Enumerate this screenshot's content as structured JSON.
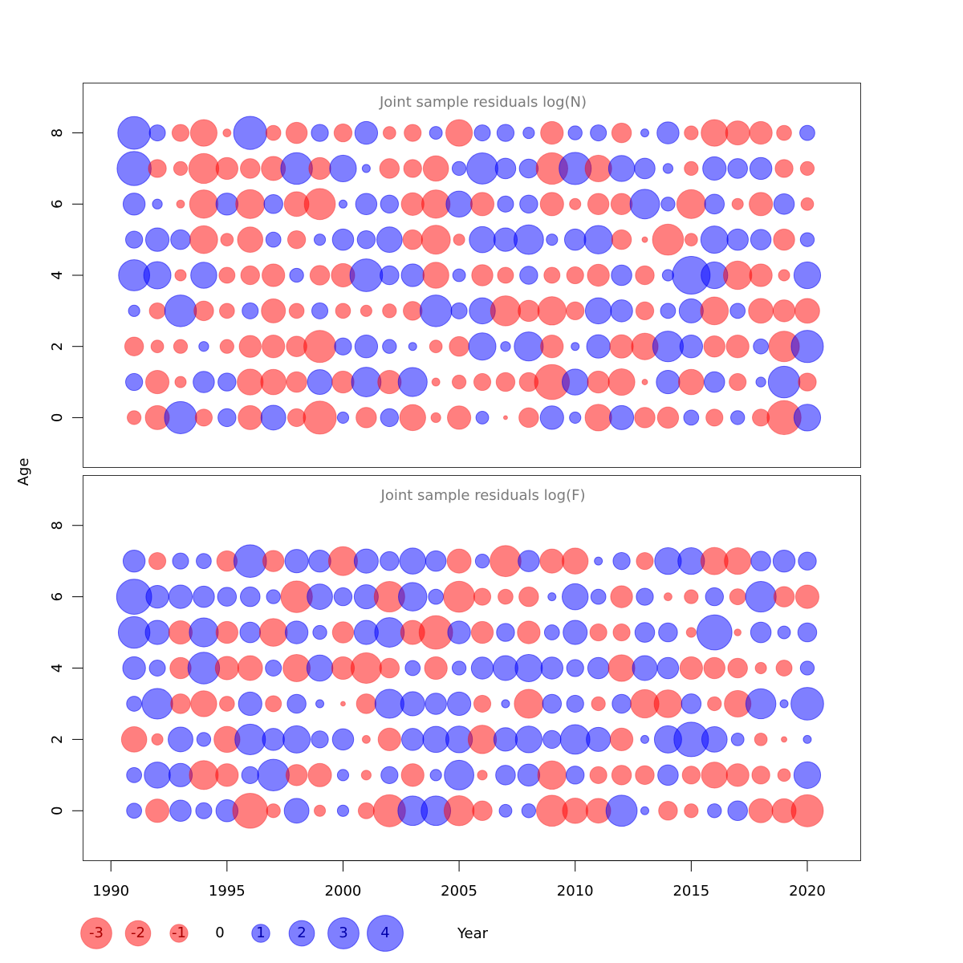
{
  "colors": {
    "positive": "#0000FF",
    "negative": "#FF0000",
    "frame": "#333333",
    "title": "#7a7a7a"
  },
  "axes": {
    "xlabel": "Year",
    "ylabel": "Age",
    "x_ticks": [
      "1990",
      "1995",
      "2000",
      "2005",
      "2010",
      "2015",
      "2020"
    ],
    "y_ticks": [
      "0",
      "2",
      "4",
      "6",
      "8"
    ],
    "xlim": [
      1988.8,
      2022.3
    ],
    "ylim": [
      -1.4,
      9.4
    ]
  },
  "legend": {
    "items": [
      {
        "label": "-3",
        "value": -3
      },
      {
        "label": "-2",
        "value": -2
      },
      {
        "label": "-1",
        "value": -1
      },
      {
        "label": "0",
        "value": 0
      },
      {
        "label": "1",
        "value": 1
      },
      {
        "label": "2",
        "value": 2
      },
      {
        "label": "3",
        "value": 3
      },
      {
        "label": "4",
        "value": 4
      }
    ]
  },
  "chart_data": [
    {
      "type": "bubble",
      "title": "Joint sample residuals log(N)",
      "xlabel": "Year",
      "ylabel": "Age",
      "x": [
        1991,
        1992,
        1993,
        1994,
        1995,
        1996,
        1997,
        1998,
        1999,
        2000,
        2001,
        2002,
        2003,
        2004,
        2005,
        2006,
        2007,
        2008,
        2009,
        2010,
        2011,
        2012,
        2013,
        2014,
        2015,
        2016,
        2017,
        2018,
        2019,
        2020
      ],
      "ages": [
        0,
        1,
        2,
        3,
        4,
        5,
        6,
        7,
        8
      ],
      "residuals": [
        [
          -0.6,
          -1.8,
          3.2,
          -0.9,
          1.0,
          -1.8,
          1.9,
          -1.0,
          -3.4,
          0.4,
          -1.3,
          1.0,
          -2.1,
          -0.3,
          -1.7,
          0.5,
          -0.05,
          -1.2,
          1.7,
          0.4,
          -2.2,
          1.8,
          -1.3,
          -1.4,
          0.7,
          -0.9,
          0.6,
          -0.9,
          -3.6,
          2.2
        ],
        [
          0.9,
          -1.7,
          -0.4,
          1.4,
          1.0,
          -2.1,
          -2.0,
          -1.3,
          1.9,
          -1.5,
          2.7,
          -1.7,
          2.6,
          -0.2,
          -0.6,
          -0.9,
          -1.1,
          -1.1,
          -3.8,
          2.1,
          -1.5,
          -2.2,
          -0.1,
          1.7,
          -2.0,
          1.3,
          -0.9,
          0.3,
          3.1,
          -1.0
        ],
        [
          -1.1,
          -0.5,
          -0.6,
          0.3,
          -0.6,
          -1.5,
          -1.6,
          -1.3,
          -3.2,
          0.9,
          1.6,
          0.6,
          0.2,
          -0.5,
          -1.2,
          2.3,
          0.3,
          2.6,
          -1.6,
          0.2,
          1.7,
          -1.7,
          -2.2,
          2.9,
          1.6,
          -1.4,
          -1.6,
          0.7,
          -2.9,
          3.2
        ],
        [
          0.4,
          -0.8,
          3.1,
          -1.2,
          -0.7,
          0.8,
          -1.8,
          -0.7,
          0.8,
          -0.7,
          -0.4,
          -0.6,
          -1.1,
          3.1,
          0.8,
          2.1,
          -2.8,
          -1.4,
          -2.5,
          -1.0,
          2.1,
          1.5,
          -1.0,
          0.7,
          1.8,
          -2.4,
          0.7,
          -1.9,
          -1.5,
          -1.9
        ],
        [
          3.0,
          2.3,
          -0.4,
          2.1,
          -0.8,
          -1.1,
          -1.6,
          0.6,
          -1.2,
          -1.7,
          3.3,
          1.1,
          1.6,
          -2.1,
          0.5,
          -1.4,
          -0.8,
          1.0,
          -0.8,
          -0.9,
          -1.5,
          1.3,
          -1.1,
          0.4,
          4.4,
          2.2,
          -2.5,
          -1.6,
          -0.4,
          2.2
        ],
        [
          0.9,
          1.7,
          1.2,
          -2.4,
          -0.5,
          -2.0,
          0.7,
          -1.0,
          0.4,
          1.4,
          1.0,
          2.0,
          -1.2,
          -2.6,
          -0.4,
          2.1,
          1.7,
          2.7,
          0.4,
          1.4,
          2.5,
          -1.2,
          -0.1,
          -3.0,
          -0.5,
          2.3,
          1.4,
          1.3,
          -1.4,
          0.6
        ],
        [
          1.5,
          0.3,
          -0.2,
          -2.5,
          1.5,
          -2.6,
          1.1,
          -1.9,
          -3.0,
          0.2,
          1.4,
          1.0,
          -1.6,
          -2.5,
          2.1,
          -1.7,
          0.8,
          1.0,
          -1.7,
          -0.4,
          -1.4,
          -1.4,
          2.7,
          0.6,
          -2.6,
          1.2,
          -0.4,
          -1.7,
          1.3,
          -0.5
        ],
        [
          3.6,
          -1.0,
          -0.6,
          -2.8,
          -1.5,
          -1.2,
          -1.8,
          3.1,
          -1.5,
          2.2,
          0.2,
          -1.2,
          -1.0,
          -2.0,
          0.6,
          3.0,
          1.3,
          1.1,
          -3.1,
          3.2,
          -2.2,
          2.1,
          1.3,
          0.3,
          -0.6,
          1.7,
          1.2,
          1.5,
          -1.0,
          -0.6
        ],
        [
          3.3,
          0.8,
          -0.9,
          -2.2,
          -0.2,
          3.4,
          -0.7,
          -1.4,
          0.9,
          -1.0,
          1.6,
          -0.5,
          -0.9,
          0.5,
          -2.2,
          0.8,
          0.9,
          0.4,
          -1.6,
          0.6,
          0.8,
          -1.2,
          0.2,
          1.5,
          -0.6,
          -2.2,
          -1.8,
          -1.6,
          -0.7,
          0.7
        ]
      ]
    },
    {
      "type": "bubble",
      "title": "Joint sample residuals log(F)",
      "xlabel": "Year",
      "ylabel": "Age",
      "x": [
        1991,
        1992,
        1993,
        1994,
        1995,
        1996,
        1997,
        1998,
        1999,
        2000,
        2001,
        2002,
        2003,
        2004,
        2005,
        2006,
        2007,
        2008,
        2009,
        2010,
        2011,
        2012,
        2013,
        2014,
        2015,
        2016,
        2017,
        2018,
        2019,
        2020
      ],
      "ages": [
        0,
        1,
        2,
        3,
        4,
        5,
        6,
        7
      ],
      "residuals": [
        [
          0.7,
          -1.7,
          1.4,
          0.8,
          1.5,
          -3.8,
          -0.6,
          1.9,
          -0.4,
          0.4,
          -0.8,
          -3.2,
          2.7,
          2.7,
          -2.8,
          -1.2,
          0.5,
          0.6,
          -3.0,
          -2.0,
          -1.9,
          3.0,
          0.2,
          -1.1,
          -0.6,
          0.6,
          1.2,
          -1.8,
          -1.8,
          -3.2
        ],
        [
          0.7,
          2.1,
          1.7,
          -2.6,
          -1.6,
          0.9,
          3.1,
          -1.4,
          -1.7,
          0.4,
          -0.3,
          0.9,
          -1.6,
          0.4,
          2.7,
          -0.3,
          1.2,
          1.5,
          -2.5,
          1.0,
          -0.9,
          -1.2,
          -1.1,
          1.3,
          -1.0,
          -2.1,
          -1.6,
          -1.0,
          -0.5,
          2.2
        ],
        [
          -2.0,
          -0.4,
          1.9,
          0.6,
          -2.1,
          2.9,
          1.5,
          2.3,
          0.9,
          1.4,
          -0.2,
          -1.6,
          1.5,
          2.1,
          2.2,
          -2.5,
          1.7,
          2.2,
          1.0,
          2.7,
          1.8,
          -1.6,
          0.2,
          2.3,
          3.7,
          2.0,
          0.5,
          -0.5,
          -0.1,
          0.2
        ],
        [
          0.7,
          2.9,
          -1.2,
          -2.1,
          -0.7,
          1.7,
          -0.8,
          1.1,
          0.2,
          -0.07,
          -1.2,
          2.6,
          1.8,
          1.4,
          1.7,
          -0.9,
          0.2,
          -2.6,
          1.1,
          0.9,
          -0.6,
          1.1,
          -2.5,
          -2.4,
          1.2,
          -0.6,
          -2.2,
          2.8,
          0.2,
          3.3
        ],
        [
          1.6,
          0.8,
          -1.4,
          3.1,
          -1.7,
          -1.9,
          0.8,
          -2.3,
          2.1,
          -1.6,
          -2.9,
          -1.2,
          0.7,
          -1.6,
          0.6,
          1.5,
          1.9,
          2.3,
          1.5,
          0.9,
          1.4,
          -2.2,
          1.9,
          1.4,
          -1.6,
          -1.4,
          -1.2,
          -0.4,
          -0.8,
          0.6
        ],
        [
          3.1,
          1.8,
          -1.7,
          2.6,
          -1.5,
          1.3,
          -2.4,
          1.6,
          0.6,
          -1.4,
          1.8,
          2.7,
          -1.8,
          -3.5,
          1.6,
          -1.5,
          1.0,
          -1.6,
          0.7,
          1.8,
          -0.9,
          -0.9,
          1.2,
          1.1,
          -0.3,
          3.8,
          -0.15,
          1.3,
          0.5,
          1.1
        ],
        [
          3.8,
          1.6,
          1.7,
          1.4,
          1.1,
          1.2,
          0.6,
          -3.1,
          2.0,
          1.0,
          1.8,
          -2.9,
          2.5,
          0.7,
          -3.0,
          -0.9,
          -0.7,
          -1.2,
          0.2,
          2.1,
          0.7,
          -1.5,
          0.9,
          -0.2,
          -0.6,
          1.0,
          -0.8,
          2.9,
          -1.3,
          -1.7
        ],
        [
          1.5,
          -0.9,
          0.8,
          0.7,
          -1.3,
          3.3,
          -1.4,
          1.7,
          1.5,
          -2.6,
          1.8,
          1.1,
          2.1,
          1.3,
          -1.8,
          0.6,
          -3.0,
          1.4,
          -1.8,
          -2.1,
          0.2,
          0.9,
          -0.9,
          2.2,
          2.2,
          -2.3,
          -2.2,
          1.2,
          1.5,
          1.0
        ]
      ]
    }
  ]
}
